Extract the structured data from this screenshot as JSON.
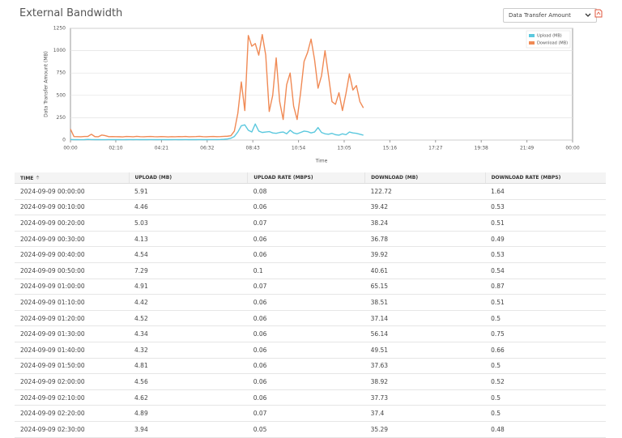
{
  "header": {
    "title": "External Bandwidth",
    "dropdown": "Data Transfer Amount"
  },
  "chart_data": {
    "type": "line",
    "ylabel": "Data Transfer Amount (MB)",
    "xlabel": "Time",
    "x": [
      0,
      10,
      20,
      30,
      40,
      50,
      60,
      70,
      80,
      90,
      100,
      110,
      120,
      130,
      140,
      150,
      160,
      170,
      180,
      190,
      200,
      210,
      220,
      230,
      240,
      250,
      260,
      270,
      280,
      290,
      300,
      310,
      320,
      330,
      340,
      350,
      360,
      370,
      380,
      390,
      400,
      410,
      420,
      430,
      440,
      450,
      460,
      470,
      480,
      490,
      500,
      510,
      520,
      530,
      540,
      550,
      560,
      570,
      580,
      590,
      600,
      610,
      620,
      630,
      640,
      650,
      660,
      670,
      680,
      690,
      700,
      710,
      720,
      730,
      740,
      750,
      760,
      770,
      780,
      790,
      800,
      810,
      820,
      830,
      840
    ],
    "series": [
      {
        "name": "Upload (MB)",
        "color": "#5bc8de",
        "values": [
          5.91,
          4.46,
          5.03,
          4.13,
          4.54,
          7.29,
          4.91,
          4.42,
          4.52,
          4.34,
          4.32,
          4.81,
          4.56,
          4.62,
          4.89,
          3.94,
          4.5,
          4.7,
          4.4,
          4.8,
          4.5,
          4.6,
          4.4,
          4.7,
          4.5,
          4.6,
          4.8,
          4.5,
          4.4,
          4.6,
          4.7,
          4.5,
          4.6,
          4.8,
          4.5,
          4.4,
          4.6,
          4.7,
          4.5,
          4.6,
          4.8,
          5,
          5.5,
          6,
          8,
          12,
          20,
          40,
          90,
          160,
          170,
          110,
          90,
          180,
          100,
          85,
          90,
          95,
          80,
          75,
          85,
          90,
          70,
          110,
          80,
          70,
          85,
          100,
          95,
          80,
          90,
          140,
          85,
          70,
          65,
          75,
          60,
          55,
          70,
          60,
          90,
          80,
          75,
          65,
          55
        ]
      },
      {
        "name": "Download (MB)",
        "color": "#f08a55",
        "values": [
          122.72,
          39.42,
          38.24,
          36.78,
          39.92,
          40.61,
          65.15,
          38.51,
          37.14,
          56.14,
          49.51,
          37.63,
          38.92,
          37.73,
          37.4,
          35.29,
          40,
          39,
          37,
          41,
          38,
          37,
          39,
          40,
          38,
          37,
          39,
          38,
          36,
          38,
          37,
          39,
          38,
          40,
          37,
          38,
          39,
          41,
          38,
          37,
          39,
          40,
          38,
          39,
          41,
          43,
          48,
          100,
          300,
          650,
          330,
          1170,
          1050,
          1080,
          950,
          1180,
          950,
          320,
          500,
          920,
          430,
          230,
          620,
          750,
          380,
          230,
          530,
          880,
          980,
          1130,
          900,
          580,
          720,
          1000,
          720,
          430,
          400,
          530,
          330,
          520,
          740,
          560,
          610,
          430,
          360
        ]
      }
    ],
    "xlim": [
      0,
      1440
    ],
    "xticks": [
      {
        "value": 0,
        "label": "00:00"
      },
      {
        "value": 130,
        "label": "02:10"
      },
      {
        "value": 261,
        "label": "04:21"
      },
      {
        "value": 392,
        "label": "06:32"
      },
      {
        "value": 523,
        "label": "08:43"
      },
      {
        "value": 654,
        "label": "10:54"
      },
      {
        "value": 785,
        "label": "13:05"
      },
      {
        "value": 916,
        "label": "15:16"
      },
      {
        "value": 1047,
        "label": "17:27"
      },
      {
        "value": 1178,
        "label": "19:38"
      },
      {
        "value": 1309,
        "label": "21:49"
      },
      {
        "value": 1440,
        "label": "00:00"
      }
    ],
    "ylim": [
      0,
      1250
    ],
    "yticks": [
      0,
      250,
      500,
      750,
      1000,
      1250
    ],
    "grid": true,
    "legend": "top-right"
  },
  "table": {
    "columns": [
      "TIME",
      "UPLOAD (MB)",
      "UPLOAD RATE (MBPS)",
      "DOWNLOAD (MB)",
      "DOWNLOAD RATE (MBPS)"
    ],
    "rows": [
      [
        "2024-09-09 00:00:00",
        "5.91",
        "0.08",
        "122.72",
        "1.64"
      ],
      [
        "2024-09-09 00:10:00",
        "4.46",
        "0.06",
        "39.42",
        "0.53"
      ],
      [
        "2024-09-09 00:20:00",
        "5.03",
        "0.07",
        "38.24",
        "0.51"
      ],
      [
        "2024-09-09 00:30:00",
        "4.13",
        "0.06",
        "36.78",
        "0.49"
      ],
      [
        "2024-09-09 00:40:00",
        "4.54",
        "0.06",
        "39.92",
        "0.53"
      ],
      [
        "2024-09-09 00:50:00",
        "7.29",
        "0.1",
        "40.61",
        "0.54"
      ],
      [
        "2024-09-09 01:00:00",
        "4.91",
        "0.07",
        "65.15",
        "0.87"
      ],
      [
        "2024-09-09 01:10:00",
        "4.42",
        "0.06",
        "38.51",
        "0.51"
      ],
      [
        "2024-09-09 01:20:00",
        "4.52",
        "0.06",
        "37.14",
        "0.5"
      ],
      [
        "2024-09-09 01:30:00",
        "4.34",
        "0.06",
        "56.14",
        "0.75"
      ],
      [
        "2024-09-09 01:40:00",
        "4.32",
        "0.06",
        "49.51",
        "0.66"
      ],
      [
        "2024-09-09 01:50:00",
        "4.81",
        "0.06",
        "37.63",
        "0.5"
      ],
      [
        "2024-09-09 02:00:00",
        "4.56",
        "0.06",
        "38.92",
        "0.52"
      ],
      [
        "2024-09-09 02:10:00",
        "4.62",
        "0.06",
        "37.73",
        "0.5"
      ],
      [
        "2024-09-09 02:20:00",
        "4.89",
        "0.07",
        "37.4",
        "0.5"
      ],
      [
        "2024-09-09 02:30:00",
        "3.94",
        "0.05",
        "35.29",
        "0.48"
      ]
    ]
  }
}
